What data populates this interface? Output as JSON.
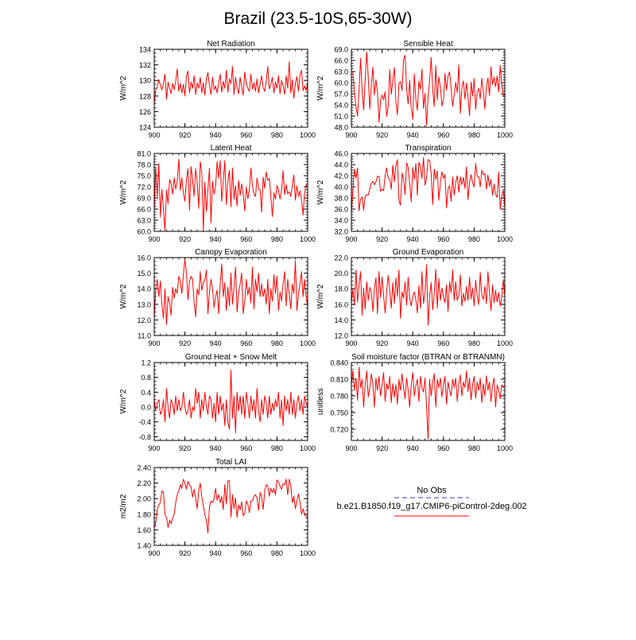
{
  "page_title": "Brazil (23.5-10S,65-30W)",
  "legend": {
    "obs_label": "No Obs",
    "obs_color": "#3333cc",
    "model_label": "b.e21.B1850.f19_g17.CMIP6-piControl-2deg.002",
    "model_color": "#ff0000"
  },
  "chart_data": [
    {
      "type": "line",
      "title": "Net Radiation",
      "ylabel": "W/m^2",
      "xlim": [
        900,
        1000
      ],
      "ylim": [
        124,
        134
      ],
      "x_ticks": [
        "900",
        "920",
        "940",
        "960",
        "980",
        "1000"
      ],
      "y_ticks": [
        "124",
        "126",
        "128",
        "130",
        "132",
        "134"
      ],
      "color": "#ff0000",
      "x_start": 900,
      "x_step": 1,
      "values": [
        127.0,
        128.8,
        129.2,
        130.1,
        129.4,
        128.8,
        129.6,
        130.8,
        127.6,
        129.8,
        129.0,
        128.3,
        129.6,
        128.8,
        129.9,
        131.5,
        128.6,
        129.6,
        128.4,
        129.5,
        128.0,
        130.6,
        131.2,
        128.4,
        129.8,
        129.0,
        130.6,
        128.2,
        129.7,
        129.0,
        130.4,
        128.4,
        129.7,
        128.1,
        130.2,
        131.0,
        129.4,
        128.2,
        130.4,
        128.8,
        129.3,
        128.4,
        129.7,
        130.8,
        128.5,
        129.9,
        129.0,
        131.3,
        128.5,
        130.2,
        129.6,
        131.8,
        128.2,
        130.4,
        129.1,
        128.3,
        130.4,
        129.2,
        128.1,
        131.1,
        129.6,
        129.0,
        128.6,
        130.8,
        128.9,
        129.7,
        128.6,
        130.2,
        128.4,
        129.6,
        130.6,
        129.1,
        128.6,
        129.9,
        131.8,
        128.9,
        129.5,
        130.4,
        128.4,
        129.8,
        129.0,
        130.6,
        128.3,
        130.0,
        129.3,
        128.2,
        130.6,
        129.0,
        132.4,
        128.4,
        130.1,
        127.7,
        129.6,
        130.5,
        128.6,
        130.7,
        131.3,
        128.7,
        129.3,
        128.7,
        129.7
      ]
    },
    {
      "type": "line",
      "title": "Sensible Heat",
      "ylabel": "W/m^2",
      "xlim": [
        900,
        1000
      ],
      "ylim": [
        48,
        69
      ],
      "x_ticks": [
        "900",
        "920",
        "940",
        "960",
        "980",
        "1000"
      ],
      "y_ticks": [
        "48.0",
        "51.0",
        "54.0",
        "57.0",
        "60.0",
        "63.0",
        "66.0",
        "69.0"
      ],
      "color": "#ff0000",
      "x_start": 900,
      "x_step": 1,
      "values": [
        63.0,
        62.8,
        57.2,
        53.6,
        51.0,
        58.3,
        66.6,
        57.8,
        52.6,
        60.8,
        68.3,
        61.5,
        52.9,
        59.4,
        64.2,
        56.7,
        60.8,
        57.5,
        49.3,
        55.1,
        56.7,
        55.4,
        57.5,
        50.9,
        53.6,
        63.5,
        56.9,
        60.5,
        64.1,
        55.0,
        51.3,
        59.8,
        60.3,
        57.9,
        66.2,
        67.4,
        58.3,
        54.3,
        60.6,
        53.1,
        50.1,
        62.4,
        55.6,
        52.6,
        60.4,
        58.2,
        63.7,
        53.1,
        57.1,
        48.4,
        56.4,
        60.6,
        66.8,
        58.1,
        53.6,
        64.6,
        55.4,
        61.6,
        59.0,
        53.7,
        55.3,
        62.5,
        58.0,
        61.8,
        62.9,
        58.5,
        53.6,
        56.7,
        60.1,
        57.3,
        64.8,
        51.7,
        58.6,
        60.5,
        55.6,
        59.9,
        56.4,
        51.1,
        60.2,
        56.4,
        61.1,
        52.8,
        57.3,
        58.5,
        55.7,
        61.2,
        57.6,
        52.9,
        59.0,
        61.3,
        56.5,
        64.3,
        59.5,
        61.5,
        58.9,
        61.8,
        57.5,
        64.6,
        59.4,
        56.4,
        57.0
      ]
    },
    {
      "type": "line",
      "title": "Latent Heat",
      "ylabel": "W/m^2",
      "xlim": [
        900,
        1000
      ],
      "ylim": [
        60,
        81
      ],
      "x_ticks": [
        "900",
        "920",
        "940",
        "960",
        "980",
        "1000"
      ],
      "y_ticks": [
        "60.0",
        "63.0",
        "66.0",
        "69.0",
        "72.0",
        "75.0",
        "78.0",
        "81.0"
      ],
      "color": "#ff0000",
      "x_start": 900,
      "x_step": 1,
      "values": [
        65.4,
        77.2,
        69.3,
        78.3,
        63.9,
        71.3,
        66.1,
        60.3,
        71.1,
        67.5,
        74.0,
        72.8,
        70.0,
        74.4,
        71.4,
        73.4,
        79.5,
        71.1,
        74.4,
        70.2,
        68.1,
        74.0,
        76.9,
        65.7,
        77.5,
        74.0,
        69.5,
        76.9,
        73.2,
        66.2,
        78.8,
        75.7,
        60.2,
        73.2,
        65.4,
        71.3,
        77.0,
        62.3,
        73.5,
        70.1,
        72.1,
        78.8,
        74.4,
        79.1,
        68.1,
        73.6,
        79.1,
        67.2,
        73.6,
        76.4,
        66.6,
        77.1,
        68.7,
        72.3,
        66.8,
        73.7,
        69.7,
        72.8,
        70.1,
        65.5,
        72.0,
        68.8,
        71.2,
        77.1,
        72.3,
        70.1,
        69.4,
        74.4,
        71.4,
        71.3,
        65.2,
        74.6,
        71.6,
        76.0,
        73.8,
        74.3,
        69.5,
        64.0,
        70.4,
        68.7,
        72.4,
        71.2,
        68.7,
        71.0,
        76.4,
        69.9,
        72.6,
        70.1,
        70.7,
        69.4,
        72.4,
        75.2,
        68.4,
        72.3,
        69.5,
        70.9,
        68.4,
        64.4,
        70.4,
        72.5,
        71.8
      ]
    },
    {
      "type": "line",
      "title": "Transpiration",
      "ylabel": "W/m^2",
      "xlim": [
        900,
        1000
      ],
      "ylim": [
        32,
        46
      ],
      "x_ticks": [
        "900",
        "920",
        "940",
        "960",
        "980",
        "1000"
      ],
      "y_ticks": [
        "32.0",
        "34.0",
        "36.0",
        "38.0",
        "40.0",
        "42.0",
        "44.0",
        "46.0"
      ],
      "color": "#ff0000",
      "x_start": 900,
      "x_step": 1,
      "values": [
        35.3,
        39.4,
        43.2,
        41.6,
        43.4,
        35.7,
        37.8,
        38.2,
        35.8,
        38.3,
        38.6,
        38.5,
        39.6,
        40.6,
        41.0,
        40.4,
        40.9,
        41.9,
        41.9,
        39.2,
        39.6,
        39.3,
        42.1,
        43.4,
        41.5,
        41.4,
        39.6,
        43.9,
        40.9,
        43.8,
        44.9,
        37.6,
        36.7,
        42.5,
        41.3,
        38.6,
        44.3,
        43.5,
        40.6,
        37.3,
        43.5,
        41.3,
        44.2,
        38.5,
        44.4,
        43.7,
        41.5,
        45.3,
        40.3,
        41.5,
        44.9,
        44.7,
        42.4,
        36.8,
        43.2,
        41.3,
        42.9,
        37.6,
        40.8,
        42.7,
        41.5,
        42.2,
        36.2,
        39.7,
        40.2,
        37.4,
        41.8,
        38.5,
        40.8,
        42.0,
        39.0,
        41.8,
        40.4,
        41.7,
        39.7,
        43.6,
        37.7,
        40.8,
        42.2,
        40.7,
        40.0,
        44.2,
        41.9,
        41.8,
        40.0,
        43.0,
        42.2,
        42.4,
        39.6,
        42.1,
        40.1,
        41.3,
        38.5,
        40.5,
        38.6,
        38.1,
        42.7,
        36.0,
        38.4,
        39.4,
        36.2
      ]
    },
    {
      "type": "line",
      "title": "Canopy Evaporation",
      "ylabel": "W/m^2",
      "xlim": [
        900,
        1000
      ],
      "ylim": [
        11,
        16
      ],
      "x_ticks": [
        "900",
        "920",
        "940",
        "960",
        "980",
        "1000"
      ],
      "y_ticks": [
        "11.0",
        "12.0",
        "13.0",
        "14.0",
        "15.0",
        "16.0"
      ],
      "color": "#ff0000",
      "x_start": 900,
      "x_step": 1,
      "values": [
        12.2,
        13.9,
        14.6,
        13.5,
        14.5,
        13.0,
        12.1,
        14.0,
        11.7,
        13.5,
        13.1,
        12.3,
        14.1,
        13.4,
        14.0,
        13.7,
        14.8,
        14.5,
        13.7,
        14.9,
        15.9,
        15.0,
        13.3,
        14.5,
        14.8,
        14.6,
        13.1,
        12.2,
        14.0,
        13.6,
        15.1,
        13.9,
        14.4,
        14.6,
        15.2,
        12.4,
        13.8,
        14.6,
        14.0,
        12.8,
        13.5,
        13.9,
        12.4,
        14.3,
        15.6,
        13.5,
        14.4,
        12.6,
        14.1,
        12.9,
        15.0,
        13.0,
        14.1,
        15.4,
        12.5,
        13.7,
        14.3,
        15.0,
        12.4,
        13.2,
        14.6,
        13.6,
        14.1,
        13.1,
        15.4,
        12.7,
        14.6,
        13.8,
        15.0,
        13.5,
        14.3,
        13.5,
        14.0,
        13.0,
        14.6,
        12.4,
        14.0,
        13.2,
        14.9,
        13.7,
        14.8,
        12.6,
        13.8,
        13.2,
        14.3,
        15.1,
        12.9,
        14.6,
        13.7,
        12.7,
        14.3,
        13.7,
        15.8,
        12.6,
        13.7,
        14.3,
        15.1,
        13.5,
        14.6,
        13.5,
        12.8
      ]
    },
    {
      "type": "line",
      "title": "Ground Evaporation",
      "ylabel": "W/m^2",
      "xlim": [
        900,
        1000
      ],
      "ylim": [
        12,
        22
      ],
      "x_ticks": [
        "900",
        "920",
        "940",
        "960",
        "980",
        "1000"
      ],
      "y_ticks": [
        "12.0",
        "14.0",
        "16.0",
        "18.0",
        "20.0",
        "22.0"
      ],
      "color": "#ff0000",
      "x_start": 900,
      "x_step": 1,
      "values": [
        16.2,
        17.9,
        15.9,
        20.4,
        16.3,
        18.6,
        20.2,
        14.6,
        18.1,
        15.4,
        18.9,
        16.5,
        18.2,
        17.5,
        15.1,
        18.1,
        19.4,
        14.8,
        20.2,
        16.9,
        19.5,
        17.1,
        14.9,
        17.7,
        19.7,
        17.8,
        15.5,
        18.8,
        16.1,
        19.4,
        17.0,
        20.4,
        14.2,
        17.6,
        16.8,
        18.9,
        15.9,
        19.5,
        16.8,
        15.8,
        17.0,
        17.6,
        16.6,
        14.9,
        18.4,
        15.5,
        20.2,
        16.1,
        17.5,
        21.1,
        13.3,
        17.0,
        18.8,
        15.3,
        17.4,
        20.5,
        15.5,
        19.3,
        16.5,
        18.1,
        17.0,
        16.2,
        18.5,
        15.1,
        18.9,
        17.5,
        20.4,
        16.5,
        18.9,
        16.5,
        17.1,
        19.8,
        15.8,
        17.4,
        16.4,
        18.3,
        16.5,
        19.5,
        16.7,
        18.1,
        15.8,
        19.1,
        17.1,
        16.0,
        20.1,
        17.2,
        16.6,
        18.3,
        16.1,
        20.2,
        17.4,
        15.2,
        18.5,
        16.2,
        17.8,
        16.3,
        17.5,
        15.8,
        16.8,
        19.2,
        17.1
      ]
    },
    {
      "type": "line",
      "title": "Ground Heat + Snow Melt",
      "ylabel": "W/m^2",
      "xlim": [
        900,
        1000
      ],
      "ylim": [
        -0.9,
        1.2
      ],
      "x_ticks": [
        "900",
        "920",
        "940",
        "960",
        "980",
        "1000"
      ],
      "y_ticks": [
        "-0.8",
        "-0.4",
        "0.0",
        "0.4",
        "0.8",
        "1.2"
      ],
      "color": "#ff0000",
      "x_start": 900,
      "x_step": 1,
      "values": [
        0.2,
        -0.1,
        0.1,
        0.2,
        -0.2,
        -0.1,
        0.2,
        -0.4,
        0.5,
        0.0,
        -0.3,
        0.2,
        0.1,
        -0.2,
        0.3,
        -0.1,
        0.2,
        -0.1,
        0.0,
        0.4,
        0.0,
        -0.2,
        -0.1,
        0.2,
        -0.3,
        0.0,
        -0.1,
        0.5,
        0.1,
        0.4,
        -0.3,
        0.2,
        -0.1,
        0.4,
        0.0,
        -0.2,
        0.3,
        0.2,
        -0.3,
        0.1,
        -0.4,
        0.4,
        -0.2,
        0.3,
        -0.1,
        0.1,
        -0.5,
        0.2,
        -0.4,
        -0.6,
        1.0,
        -0.3,
        0.3,
        -0.7,
        0.4,
        -0.1,
        0.3,
        -0.2,
        0.3,
        -0.3,
        0.4,
        0.1,
        -0.3,
        0.3,
        -0.1,
        0.2,
        -0.3,
        0.5,
        -0.1,
        -0.4,
        0.2,
        -0.2,
        0.3,
        0.1,
        -0.3,
        0.3,
        -0.2,
        0.1,
        -0.1,
        0.2,
        0.0,
        0.4,
        -0.3,
        0.2,
        -0.5,
        0.3,
        -0.1,
        0.2,
        -0.2,
        0.4,
        -0.2,
        0.2,
        -0.3,
        0.1,
        0.3,
        -0.1,
        0.2,
        -0.2,
        0.3,
        0.1,
        0.0
      ]
    },
    {
      "type": "line",
      "title": "Soil moisture factor (BTRAN or BTRANMN)",
      "ylabel": "unitless",
      "xlim": [
        900,
        1000
      ],
      "ylim": [
        0.7,
        0.84
      ],
      "x_ticks": [
        "900",
        "920",
        "940",
        "960",
        "980",
        "1000"
      ],
      "y_ticks": [
        "0.720",
        "0.750",
        "0.780",
        "0.810",
        "0.840"
      ],
      "color": "#ff0000",
      "x_start": 900,
      "x_step": 1,
      "values": [
        0.8,
        0.825,
        0.79,
        0.812,
        0.772,
        0.832,
        0.795,
        0.81,
        0.76,
        0.8,
        0.825,
        0.778,
        0.795,
        0.82,
        0.802,
        0.76,
        0.812,
        0.79,
        0.815,
        0.78,
        0.8,
        0.822,
        0.77,
        0.802,
        0.792,
        0.815,
        0.768,
        0.802,
        0.778,
        0.8,
        0.765,
        0.81,
        0.79,
        0.82,
        0.795,
        0.775,
        0.812,
        0.79,
        0.76,
        0.8,
        0.822,
        0.78,
        0.798,
        0.81,
        0.77,
        0.815,
        0.795,
        0.787,
        0.812,
        0.76,
        0.703,
        0.81,
        0.78,
        0.805,
        0.82,
        0.76,
        0.81,
        0.795,
        0.812,
        0.778,
        0.8,
        0.815,
        0.765,
        0.805,
        0.79,
        0.78,
        0.81,
        0.795,
        0.812,
        0.77,
        0.8,
        0.818,
        0.78,
        0.805,
        0.795,
        0.825,
        0.788,
        0.812,
        0.773,
        0.8,
        0.815,
        0.776,
        0.805,
        0.79,
        0.812,
        0.768,
        0.802,
        0.78,
        0.816,
        0.79,
        0.805,
        0.77,
        0.8,
        0.812,
        0.76,
        0.8,
        0.79,
        0.775,
        0.8,
        0.795,
        0.798
      ]
    },
    {
      "type": "line",
      "title": "Total LAI",
      "ylabel": "m2/m2",
      "xlim": [
        900,
        1000
      ],
      "ylim": [
        1.4,
        2.4
      ],
      "x_ticks": [
        "900",
        "920",
        "940",
        "960",
        "980",
        "1000"
      ],
      "y_ticks": [
        "1.40",
        "1.60",
        "1.80",
        "2.00",
        "2.20",
        "2.40"
      ],
      "color": "#ff0000",
      "x_start": 900,
      "x_step": 1,
      "values": [
        1.62,
        1.7,
        1.86,
        1.92,
        1.95,
        2.1,
        2.08,
        1.8,
        1.76,
        1.63,
        1.72,
        1.68,
        1.75,
        1.8,
        1.95,
        2.05,
        2.1,
        2.18,
        2.13,
        2.25,
        2.2,
        2.12,
        2.22,
        2.18,
        2.15,
        2.02,
        2.12,
        2.01,
        1.87,
        2.1,
        2.2,
        2.02,
        1.91,
        1.79,
        1.72,
        1.56,
        1.89,
        1.97,
        1.95,
        2.0,
        2.13,
        1.98,
        2.05,
        1.95,
        2.03,
        1.86,
        2.18,
        1.93,
        2.23,
        2.23,
        1.76,
        2.05,
        1.87,
        2.01,
        1.76,
        1.92,
        1.86,
        1.96,
        1.78,
        1.81,
        1.97,
        1.93,
        1.82,
        1.97,
        1.97,
        2.03,
        2.05,
        2.01,
        1.85,
        2.08,
        2.02,
        1.86,
        2.1,
        2.18,
        2.16,
        2.03,
        2.13,
        2.08,
        2.13,
        2.05,
        2.24,
        2.21,
        2.16,
        2.12,
        2.19,
        2.18,
        2.25,
        2.05,
        2.25,
        2.17,
        1.95,
        2.03,
        1.87,
        1.97,
        2.06,
        1.96,
        1.8,
        1.87,
        1.79,
        1.78,
        1.75
      ]
    }
  ]
}
